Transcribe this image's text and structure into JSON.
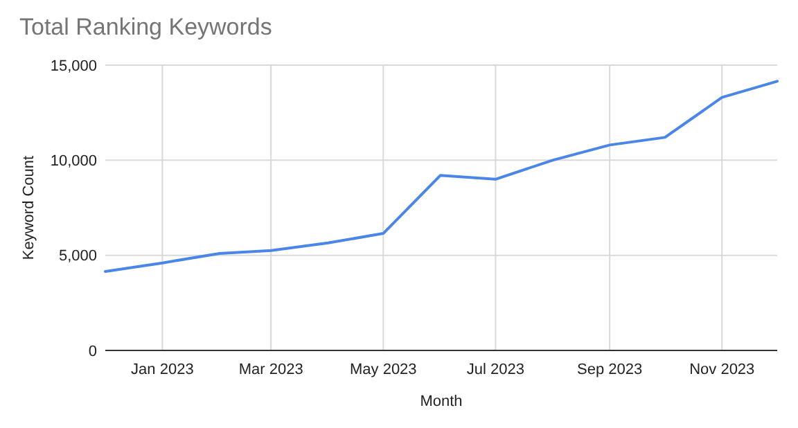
{
  "chart_data": {
    "type": "line",
    "title": "Total Ranking Keywords",
    "xlabel": "Month",
    "ylabel": "Keyword Count",
    "x": [
      "2022-12-01",
      "2023-01-01",
      "2023-02-01",
      "2023-03-01",
      "2023-04-01",
      "2023-05-01",
      "2023-06-01",
      "2023-07-01",
      "2023-08-01",
      "2023-09-01",
      "2023-10-01",
      "2023-11-01",
      "2023-12-01"
    ],
    "series": [
      {
        "color": "#4a86e8",
        "values": [
          4150,
          4600,
          5100,
          5250,
          5650,
          6150,
          9200,
          9000,
          10000,
          10800,
          11200,
          13300,
          14150
        ]
      }
    ],
    "xlim": [
      "2022-12-01",
      "2023-12-01"
    ],
    "xticks": [
      {
        "value": "2023-01-01",
        "label": "Jan 2023"
      },
      {
        "value": "2023-03-01",
        "label": "Mar 2023"
      },
      {
        "value": "2023-05-01",
        "label": "May 2023"
      },
      {
        "value": "2023-07-01",
        "label": "Jul 2023"
      },
      {
        "value": "2023-09-01",
        "label": "Sep 2023"
      },
      {
        "value": "2023-11-01",
        "label": "Nov 2023"
      }
    ],
    "ylim": [
      0,
      15000
    ],
    "yticks": [
      {
        "value": 0,
        "label": "0"
      },
      {
        "value": 5000,
        "label": "5,000"
      },
      {
        "value": 10000,
        "label": "10,000"
      },
      {
        "value": 15000,
        "label": "15,000"
      }
    ],
    "grid": true,
    "marker": "none",
    "line_style": "solid"
  }
}
